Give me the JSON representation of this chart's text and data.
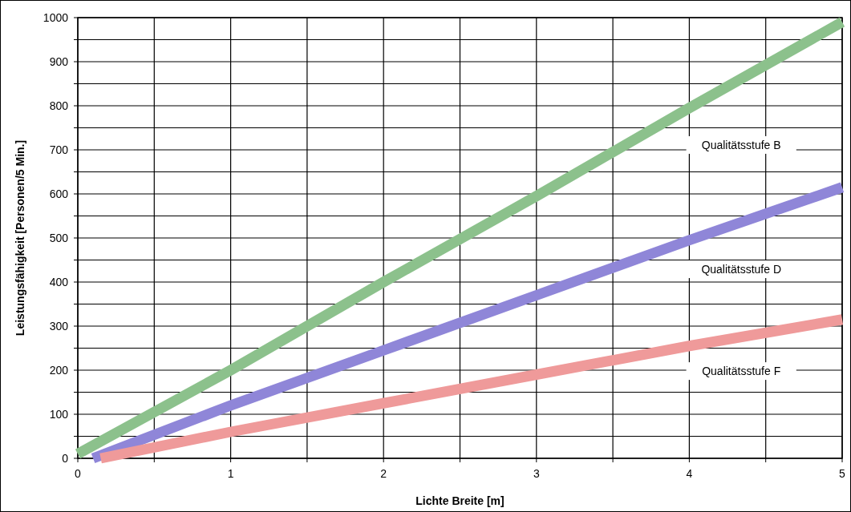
{
  "chart_data": {
    "type": "line",
    "xlabel": "Lichte Breite [m]",
    "ylabel": "Leistungsfähigkeit [Personen/5 Min.]",
    "xlim": [
      0,
      5
    ],
    "ylim": [
      0,
      1000
    ],
    "xticks": [
      0,
      {
        "value": 0.5,
        "label": null
      },
      1,
      {
        "value": 1.5,
        "label": null
      },
      2,
      {
        "value": 2.5,
        "label": null
      },
      3,
      {
        "value": 3.5,
        "label": null
      },
      4,
      {
        "value": 4.5,
        "label": null
      },
      5
    ],
    "yticks": [
      0,
      {
        "value": 50,
        "label": null
      },
      100,
      {
        "value": 150,
        "label": null
      },
      200,
      {
        "value": 250,
        "label": null
      },
      300,
      {
        "value": 350,
        "label": null
      },
      400,
      {
        "value": 450,
        "label": null
      },
      500,
      {
        "value": 550,
        "label": null
      },
      600,
      {
        "value": 650,
        "label": null
      },
      700,
      {
        "value": 750,
        "label": null
      },
      800,
      {
        "value": 850,
        "label": null
      },
      900,
      {
        "value": 950,
        "label": null
      },
      1000
    ],
    "grid": true,
    "series": [
      {
        "color": "#8cc18c",
        "x": [
          0,
          1,
          2,
          3,
          4,
          5
        ],
        "values": [
          10,
          200,
          400,
          595,
          795,
          990
        ]
      },
      {
        "color": "#8f86d8",
        "x": [
          0.1,
          1,
          2,
          3,
          4,
          5
        ],
        "values": [
          0,
          120,
          245,
          370,
          495,
          615
        ]
      },
      {
        "color": "#ef9a9a",
        "x": [
          0.15,
          1,
          2,
          3,
          4,
          5
        ],
        "values": [
          0,
          60,
          125,
          190,
          255,
          315
        ]
      }
    ],
    "annotations": [
      "Qualitätsstufe B",
      "Qualitätsstufe D",
      "Qualitätsstufe F"
    ]
  }
}
